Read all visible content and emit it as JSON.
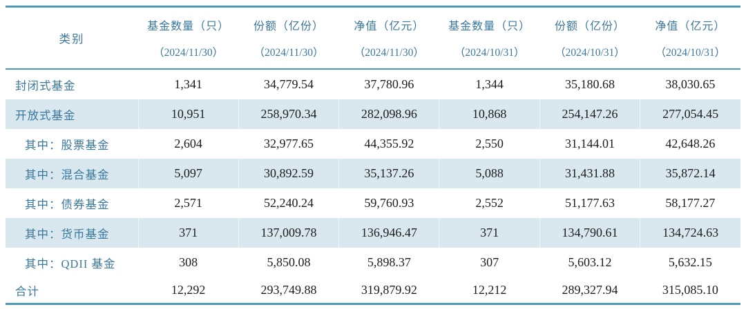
{
  "table": {
    "title_hint": "公募基金市场数据统计表",
    "colors": {
      "border_blue": "#4d9ab8",
      "header_text_blue": "#39789c",
      "shaded_row_bg": "#d9e8ef",
      "number_text": "#1c1c1c"
    },
    "header": {
      "category_label": "类别",
      "columns": [
        {
          "title": "基金数量（只）",
          "date": "（2024/11/30）"
        },
        {
          "title": "份额（亿份）",
          "date": "（2024/11/30）"
        },
        {
          "title": "净值（亿元）",
          "date": "（2024/11/30）"
        },
        {
          "title": "基金数量（只）",
          "date": "（2024/10/31）"
        },
        {
          "title": "份额（亿份）",
          "date": "（2024/10/31）"
        },
        {
          "title": "净值（亿元）",
          "date": "（2024/10/31）"
        }
      ]
    },
    "rows": [
      {
        "label": "封闭式基金",
        "indent": false,
        "shaded": false,
        "total": false,
        "values": [
          "1,341",
          "34,779.54",
          "37,780.96",
          "1,344",
          "35,180.68",
          "38,030.65"
        ]
      },
      {
        "label": "开放式基金",
        "indent": false,
        "shaded": true,
        "total": false,
        "values": [
          "10,951",
          "258,970.34",
          "282,098.96",
          "10,868",
          "254,147.26",
          "277,054.45"
        ]
      },
      {
        "label": "其中：股票基金",
        "indent": true,
        "shaded": false,
        "total": false,
        "values": [
          "2,604",
          "32,977.65",
          "44,355.92",
          "2,550",
          "31,144.01",
          "42,648.26"
        ]
      },
      {
        "label": "其中：混合基金",
        "indent": true,
        "shaded": true,
        "total": false,
        "values": [
          "5,097",
          "30,892.59",
          "35,137.26",
          "5,088",
          "31,431.88",
          "35,872.14"
        ]
      },
      {
        "label": "其中：债券基金",
        "indent": true,
        "shaded": false,
        "total": false,
        "values": [
          "2,571",
          "52,240.24",
          "59,760.93",
          "2,552",
          "51,177.63",
          "58,177.27"
        ]
      },
      {
        "label": "其中：货币基金",
        "indent": true,
        "shaded": true,
        "total": false,
        "values": [
          "371",
          "137,009.78",
          "136,946.47",
          "371",
          "134,790.61",
          "134,724.63"
        ]
      },
      {
        "label": "其中：QDII 基金",
        "indent": true,
        "shaded": false,
        "total": false,
        "values": [
          "308",
          "5,850.08",
          "5,898.37",
          "307",
          "5,603.12",
          "5,632.15"
        ]
      },
      {
        "label": "合计",
        "indent": false,
        "shaded": false,
        "total": true,
        "values": [
          "12,292",
          "293,749.88",
          "319,879.92",
          "12,212",
          "289,327.94",
          "315,085.10"
        ]
      }
    ]
  },
  "chart_data": {
    "type": "table",
    "title": "",
    "columns": [
      "类别",
      "基金数量（只）（2024/11/30）",
      "份额（亿份）（2024/11/30）",
      "净值（亿元）（2024/11/30）",
      "基金数量（只）（2024/10/31）",
      "份额（亿份）（2024/10/31）",
      "净值（亿元）（2024/10/31）"
    ],
    "rows": [
      [
        "封闭式基金",
        1341,
        34779.54,
        37780.96,
        1344,
        35180.68,
        38030.65
      ],
      [
        "开放式基金",
        10951,
        258970.34,
        282098.96,
        10868,
        254147.26,
        277054.45
      ],
      [
        "其中：股票基金",
        2604,
        32977.65,
        44355.92,
        2550,
        31144.01,
        42648.26
      ],
      [
        "其中：混合基金",
        5097,
        30892.59,
        35137.26,
        5088,
        31431.88,
        35872.14
      ],
      [
        "其中：债券基金",
        2571,
        52240.24,
        59760.93,
        2552,
        51177.63,
        58177.27
      ],
      [
        "其中：货币基金",
        371,
        137009.78,
        136946.47,
        371,
        134790.61,
        134724.63
      ],
      [
        "其中：QDII 基金",
        308,
        5850.08,
        5898.37,
        307,
        5603.12,
        5632.15
      ],
      [
        "合计",
        12292,
        293749.88,
        319879.92,
        12212,
        289327.94,
        315085.1
      ]
    ]
  }
}
